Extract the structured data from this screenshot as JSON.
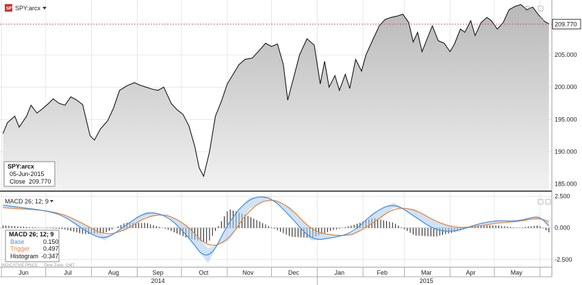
{
  "header": {
    "symbol_label": "SPY:arcx",
    "symbol_icon": "spy-ticker-icon",
    "dropdown_icon": "chevron-down-icon"
  },
  "info_box": {
    "symbol": "SPY:arcx",
    "date": "05-Jun-2015",
    "close_label": "Close",
    "close_value": "209.770"
  },
  "macd_header": {
    "label": "MACD 26; 12; 9",
    "dropdown_icon": "chevron-down-icon"
  },
  "macd_legend": {
    "title": "MACD 26; 12; 9",
    "base_label": "Base",
    "base_value": "0.150",
    "trigger_label": "Trigger",
    "trigger_value": "0.497",
    "histogram_label": "Histogram",
    "histogram_value": "-0.347"
  },
  "footer": {
    "indicative_price": "INDICATIVE PRICE",
    "time_zone": "Time Zone: GMT"
  },
  "colors": {
    "price_line": "#111111",
    "area_fill": "#cfcfcf",
    "ref_line": "#cc2222",
    "base_line": "#4a90d9",
    "trigger_line": "#e8833a",
    "histogram": "#111111"
  },
  "chart_data": [
    {
      "type": "area",
      "title": "SPY:arcx",
      "ylim": [
        184,
        213.5
      ],
      "y_ticks": [
        "185.000",
        "190.000",
        "195.000",
        "200.000",
        "205.000"
      ],
      "y_tick_values": [
        185,
        190,
        195,
        200,
        205
      ],
      "last_value_label": "209.770",
      "last_value": 209.77,
      "grid": true,
      "x_months": [
        "Jun",
        "Jul",
        "Aug",
        "Sep",
        "Oct",
        "Nov",
        "Dec",
        "Jan",
        "Feb",
        "Mar",
        "Apr",
        "May"
      ],
      "x_years": [
        "2014",
        "2015"
      ],
      "x_start": "2014-05-31",
      "x_end": "2015-06-09",
      "series": [
        {
          "x": [
            "2014-06-02",
            "2014-06-05",
            "2014-06-10",
            "2014-06-13",
            "2014-06-18",
            "2014-06-21",
            "2014-06-25",
            "2014-06-28",
            "2014-07-03",
            "2014-07-06",
            "2014-07-10",
            "2014-07-14",
            "2014-07-18",
            "2014-07-22",
            "2014-07-26",
            "2014-07-31",
            "2014-08-03",
            "2014-08-07",
            "2014-08-12",
            "2014-08-16",
            "2014-08-20",
            "2014-08-25",
            "2014-08-30",
            "2014-09-03",
            "2014-09-07",
            "2014-09-11",
            "2014-09-15",
            "2014-09-19",
            "2014-09-24",
            "2014-09-28",
            "2014-10-02",
            "2014-10-06",
            "2014-10-10",
            "2014-10-13",
            "2014-10-16",
            "2014-10-20",
            "2014-10-24",
            "2014-10-28",
            "2014-11-01",
            "2014-11-05",
            "2014-11-09",
            "2014-11-13",
            "2014-11-18",
            "2014-11-22",
            "2014-11-27",
            "2014-12-01",
            "2014-12-05",
            "2014-12-09",
            "2014-12-12",
            "2014-12-16",
            "2014-12-20",
            "2014-12-25",
            "2014-12-30",
            "2015-01-03",
            "2015-01-06",
            "2015-01-09",
            "2015-01-13",
            "2015-01-16",
            "2015-01-20",
            "2015-01-23",
            "2015-01-27",
            "2015-01-31",
            "2015-02-03",
            "2015-02-08",
            "2015-02-12",
            "2015-02-16",
            "2015-02-20",
            "2015-02-24",
            "2015-02-28",
            "2015-03-04",
            "2015-03-07",
            "2015-03-10",
            "2015-03-13",
            "2015-03-17",
            "2015-03-20",
            "2015-03-24",
            "2015-03-28",
            "2015-04-01",
            "2015-04-04",
            "2015-04-08",
            "2015-04-11",
            "2015-04-15",
            "2015-04-18",
            "2015-04-22",
            "2015-04-26",
            "2015-04-29",
            "2015-05-03",
            "2015-05-07",
            "2015-05-11",
            "2015-05-15",
            "2015-05-19",
            "2015-05-23",
            "2015-05-27",
            "2015-05-31",
            "2015-06-04",
            "2015-06-07"
          ],
          "values": [
            192.8,
            194.5,
            195.5,
            193.8,
            195.5,
            197.2,
            196.0,
            196.5,
            197.5,
            198.2,
            197.5,
            197.2,
            198.5,
            198.0,
            197.3,
            192.5,
            191.8,
            193.5,
            194.8,
            196.8,
            199.5,
            200.2,
            200.7,
            200.3,
            200.0,
            199.7,
            199.5,
            200.0,
            197.5,
            196.5,
            195.8,
            194.0,
            190.8,
            187.5,
            186.2,
            190.0,
            195.5,
            197.8,
            200.5,
            202.0,
            203.5,
            204.3,
            204.5,
            205.5,
            206.8,
            206.3,
            206.7,
            203.5,
            198.0,
            201.5,
            205.0,
            207.5,
            206.5,
            200.5,
            204.0,
            200.0,
            201.8,
            199.5,
            202.0,
            199.8,
            204.3,
            202.5,
            205.0,
            207.5,
            209.5,
            210.5,
            210.8,
            211.0,
            211.3,
            210.0,
            207.0,
            208.5,
            205.5,
            207.8,
            209.5,
            207.2,
            206.8,
            205.5,
            206.7,
            209.0,
            208.5,
            210.3,
            208.0,
            210.0,
            210.8,
            210.3,
            209.0,
            210.0,
            212.0,
            212.5,
            212.8,
            212.0,
            212.4,
            211.2,
            210.2,
            209.8
          ]
        }
      ]
    },
    {
      "type": "line",
      "title": "MACD 26; 12; 9",
      "ylim": [
        -3.0,
        2.8
      ],
      "y_ticks": [
        "2.500",
        "0.000",
        "-2.500"
      ],
      "y_tick_values": [
        2.5,
        0,
        -2.5
      ],
      "grid": true,
      "x": [
        "2014-06-02",
        "2014-06-15",
        "2014-06-29",
        "2014-07-13",
        "2014-07-27",
        "2014-08-10",
        "2014-08-24",
        "2014-09-07",
        "2014-09-21",
        "2014-10-05",
        "2014-10-19",
        "2014-11-02",
        "2014-11-16",
        "2014-11-30",
        "2014-12-14",
        "2014-12-28",
        "2015-01-11",
        "2015-01-25",
        "2015-02-08",
        "2015-02-22",
        "2015-03-08",
        "2015-03-22",
        "2015-04-05",
        "2015-04-19",
        "2015-05-03",
        "2015-05-17",
        "2015-05-31",
        "2015-06-07"
      ],
      "series": [
        {
          "name": "Base",
          "values": [
            1.8,
            1.6,
            1.4,
            1.0,
            -0.2,
            -1.0,
            0.2,
            1.3,
            1.0,
            -0.6,
            -2.8,
            0.5,
            2.4,
            2.5,
            0.9,
            -1.0,
            -0.8,
            -0.4,
            1.2,
            2.0,
            0.9,
            -0.2,
            -0.3,
            0.3,
            0.6,
            0.5,
            1.0,
            0.15
          ]
        },
        {
          "name": "Trigger",
          "values": [
            1.6,
            1.5,
            1.4,
            1.1,
            0.3,
            -0.6,
            -0.2,
            0.9,
            1.1,
            0.2,
            -1.6,
            -1.0,
            1.5,
            2.4,
            1.6,
            -0.2,
            -0.6,
            -0.6,
            0.4,
            1.6,
            1.5,
            0.5,
            0.0,
            0.1,
            0.4,
            0.5,
            0.8,
            0.497
          ]
        },
        {
          "name": "Histogram",
          "values": [
            0.2,
            0.1,
            0.0,
            -0.1,
            -0.5,
            -0.4,
            0.4,
            0.4,
            -0.1,
            -0.8,
            -1.2,
            1.5,
            0.9,
            0.1,
            -0.7,
            -0.8,
            -0.2,
            0.2,
            0.8,
            0.4,
            -0.6,
            -0.7,
            -0.3,
            0.2,
            0.2,
            0.0,
            0.2,
            -0.347
          ]
        }
      ]
    }
  ]
}
